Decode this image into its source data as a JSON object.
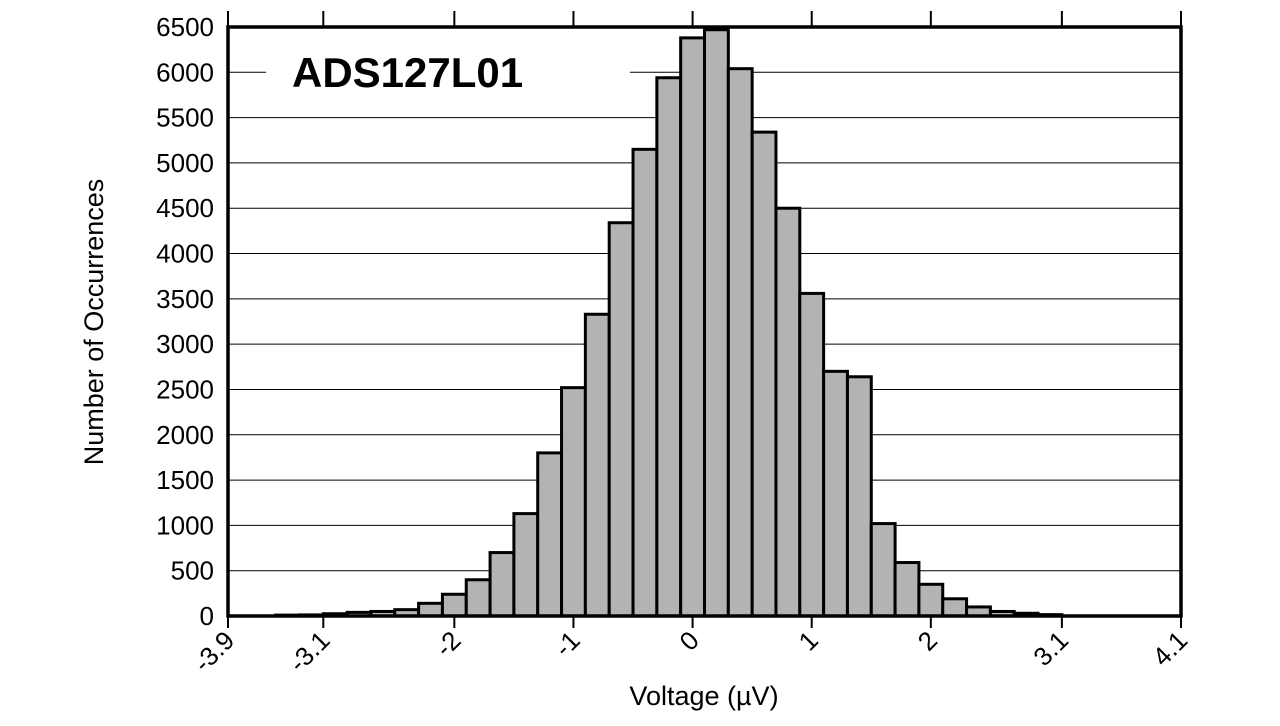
{
  "chart_data": {
    "type": "bar",
    "title": "ADS127L01",
    "xlabel": "Voltage (µV)",
    "ylabel": "Number of Occurrences",
    "xlim": [
      -3.9,
      4.1
    ],
    "ylim": [
      0,
      6500
    ],
    "x_ticks": [
      "-3.9",
      "-3.1",
      "-2",
      "-1",
      "0",
      "1",
      "2",
      "3.1",
      "4.1"
    ],
    "y_ticks": [
      "0",
      "500",
      "1000",
      "1500",
      "2000",
      "2500",
      "3000",
      "3500",
      "4000",
      "4500",
      "5000",
      "5500",
      "6000",
      "6500"
    ],
    "grid": "horizontal",
    "bar_color": "#b3b3b3",
    "bins": [
      {
        "x0": -3.5,
        "x1": -3.3,
        "value": 10
      },
      {
        "x0": -3.3,
        "x1": -3.1,
        "value": 12
      },
      {
        "x0": -3.1,
        "x1": -2.9,
        "value": 25
      },
      {
        "x0": -2.9,
        "x1": -2.7,
        "value": 40
      },
      {
        "x0": -2.7,
        "x1": -2.5,
        "value": 50
      },
      {
        "x0": -2.5,
        "x1": -2.3,
        "value": 70
      },
      {
        "x0": -2.3,
        "x1": -2.1,
        "value": 140
      },
      {
        "x0": -2.1,
        "x1": -1.9,
        "value": 240
      },
      {
        "x0": -1.9,
        "x1": -1.7,
        "value": 400
      },
      {
        "x0": -1.7,
        "x1": -1.5,
        "value": 700
      },
      {
        "x0": -1.5,
        "x1": -1.3,
        "value": 1130
      },
      {
        "x0": -1.3,
        "x1": -1.1,
        "value": 1800
      },
      {
        "x0": -1.1,
        "x1": -0.9,
        "value": 2520
      },
      {
        "x0": -0.9,
        "x1": -0.7,
        "value": 3330
      },
      {
        "x0": -0.7,
        "x1": -0.5,
        "value": 4340
      },
      {
        "x0": -0.5,
        "x1": -0.3,
        "value": 5150
      },
      {
        "x0": -0.3,
        "x1": -0.1,
        "value": 5940
      },
      {
        "x0": -0.1,
        "x1": 0.1,
        "value": 6380
      },
      {
        "x0": 0.1,
        "x1": 0.3,
        "value": 6470
      },
      {
        "x0": 0.3,
        "x1": 0.5,
        "value": 6040
      },
      {
        "x0": 0.5,
        "x1": 0.7,
        "value": 5340
      },
      {
        "x0": 0.7,
        "x1": 0.9,
        "value": 4500
      },
      {
        "x0": 0.9,
        "x1": 1.1,
        "value": 3560
      },
      {
        "x0": 1.1,
        "x1": 1.3,
        "value": 2700
      },
      {
        "x0": 1.3,
        "x1": 1.5,
        "value": 2640
      },
      {
        "x0": 1.5,
        "x1": 1.7,
        "value": 1020
      },
      {
        "x0": 1.7,
        "x1": 1.9,
        "value": 590
      },
      {
        "x0": 1.9,
        "x1": 2.1,
        "value": 350
      },
      {
        "x0": 2.1,
        "x1": 2.3,
        "value": 190
      },
      {
        "x0": 2.3,
        "x1": 2.5,
        "value": 100
      },
      {
        "x0": 2.5,
        "x1": 2.7,
        "value": 50
      },
      {
        "x0": 2.7,
        "x1": 2.9,
        "value": 30
      },
      {
        "x0": 2.9,
        "x1": 3.1,
        "value": 15
      }
    ]
  }
}
